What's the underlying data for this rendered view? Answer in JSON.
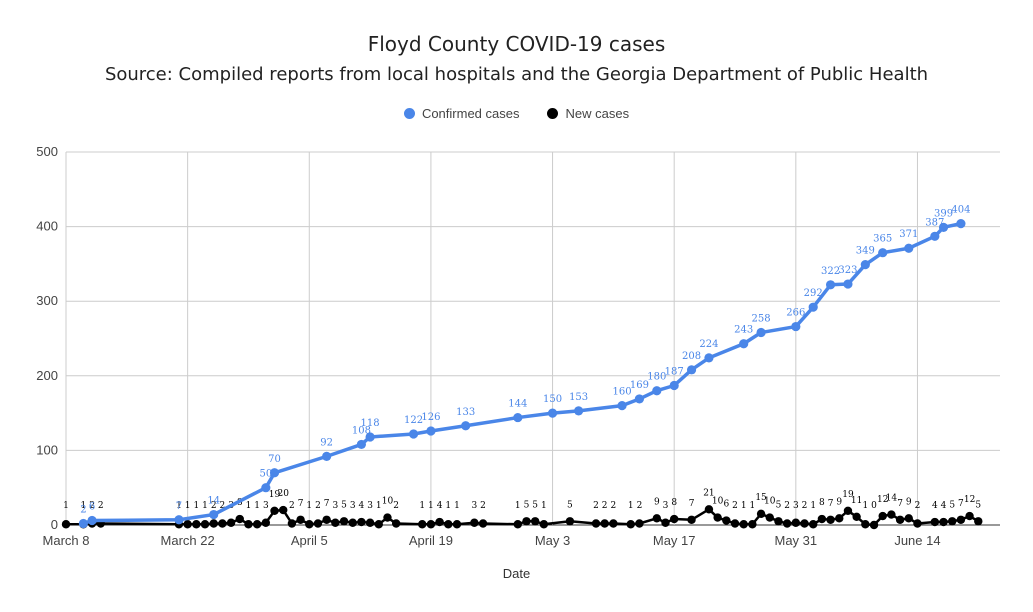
{
  "chart_data": {
    "type": "line",
    "title": "Floyd County COVID-19 cases",
    "subtitle": "Source: Compiled reports from local hospitals and the Georgia Department of Public Health",
    "xlabel": "Date",
    "ylabel": "",
    "ylim": [
      0,
      500
    ],
    "yticks": [
      0,
      100,
      200,
      300,
      400,
      500
    ],
    "xticks": [
      "March 8",
      "March 22",
      "April 5",
      "April 19",
      "May 3",
      "May 17",
      "May 31",
      "June 14"
    ],
    "grid": true,
    "legend_position": "top",
    "series": [
      {
        "name": "Confirmed cases",
        "color": "#4a86e8",
        "points": [
          [
            "03-10",
            2
          ],
          [
            "03-11",
            6
          ],
          [
            "03-21",
            7
          ],
          [
            "03-25",
            14
          ],
          [
            "03-31",
            50
          ],
          [
            "04-01",
            70
          ],
          [
            "04-07",
            92
          ],
          [
            "04-11",
            108
          ],
          [
            "04-12",
            118
          ],
          [
            "04-17",
            122
          ],
          [
            "04-19",
            126
          ],
          [
            "04-23",
            133
          ],
          [
            "04-29",
            144
          ],
          [
            "05-03",
            150
          ],
          [
            "05-06",
            153
          ],
          [
            "05-11",
            160
          ],
          [
            "05-13",
            169
          ],
          [
            "05-15",
            180
          ],
          [
            "05-17",
            187
          ],
          [
            "05-19",
            208
          ],
          [
            "05-21",
            224
          ],
          [
            "05-25",
            243
          ],
          [
            "05-27",
            258
          ],
          [
            "05-31",
            266
          ],
          [
            "06-02",
            292
          ],
          [
            "06-04",
            322
          ],
          [
            "06-06",
            323
          ],
          [
            "06-08",
            349
          ],
          [
            "06-10",
            365
          ],
          [
            "06-13",
            371
          ],
          [
            "06-16",
            387
          ],
          [
            "06-17",
            399
          ],
          [
            "06-19",
            404
          ]
        ]
      },
      {
        "name": "New cases",
        "color": "#000000",
        "points": [
          [
            "03-08",
            1
          ],
          [
            "03-10",
            1
          ],
          [
            "03-11",
            2
          ],
          [
            "03-12",
            2
          ],
          [
            "03-21",
            1
          ],
          [
            "03-22",
            1
          ],
          [
            "03-23",
            1
          ],
          [
            "03-24",
            1
          ],
          [
            "03-25",
            2
          ],
          [
            "03-26",
            2
          ],
          [
            "03-27",
            3
          ],
          [
            "03-28",
            8
          ],
          [
            "03-29",
            1
          ],
          [
            "03-30",
            1
          ],
          [
            "03-31",
            3
          ],
          [
            "04-01",
            19
          ],
          [
            "04-02",
            20
          ],
          [
            "04-03",
            2
          ],
          [
            "04-04",
            7
          ],
          [
            "04-05",
            1
          ],
          [
            "04-06",
            2
          ],
          [
            "04-07",
            7
          ],
          [
            "04-08",
            3
          ],
          [
            "04-09",
            5
          ],
          [
            "04-10",
            3
          ],
          [
            "04-11",
            4
          ],
          [
            "04-12",
            3
          ],
          [
            "04-13",
            1
          ],
          [
            "04-14",
            10
          ],
          [
            "04-15",
            2
          ],
          [
            "04-18",
            1
          ],
          [
            "04-19",
            1
          ],
          [
            "04-20",
            4
          ],
          [
            "04-21",
            1
          ],
          [
            "04-22",
            1
          ],
          [
            "04-24",
            3
          ],
          [
            "04-25",
            2
          ],
          [
            "04-29",
            1
          ],
          [
            "04-30",
            5
          ],
          [
            "05-01",
            5
          ],
          [
            "05-02",
            1
          ],
          [
            "05-05",
            5
          ],
          [
            "05-08",
            2
          ],
          [
            "05-09",
            2
          ],
          [
            "05-10",
            2
          ],
          [
            "05-12",
            1
          ],
          [
            "05-13",
            2
          ],
          [
            "05-15",
            9
          ],
          [
            "05-16",
            3
          ],
          [
            "05-17",
            8
          ],
          [
            "05-19",
            7
          ],
          [
            "05-21",
            21
          ],
          [
            "05-22",
            10
          ],
          [
            "05-23",
            6
          ],
          [
            "05-24",
            2
          ],
          [
            "05-25",
            1
          ],
          [
            "05-26",
            1
          ],
          [
            "05-27",
            15
          ],
          [
            "05-28",
            10
          ],
          [
            "05-29",
            5
          ],
          [
            "05-30",
            2
          ],
          [
            "05-31",
            3
          ],
          [
            "06-01",
            2
          ],
          [
            "06-02",
            1
          ],
          [
            "06-03",
            8
          ],
          [
            "06-04",
            7
          ],
          [
            "06-05",
            9
          ],
          [
            "06-06",
            19
          ],
          [
            "06-07",
            11
          ],
          [
            "06-08",
            1
          ],
          [
            "06-09",
            0
          ],
          [
            "06-10",
            12
          ],
          [
            "06-11",
            14
          ],
          [
            "06-12",
            7
          ],
          [
            "06-13",
            9
          ],
          [
            "06-14",
            2
          ],
          [
            "06-16",
            4
          ],
          [
            "06-17",
            4
          ],
          [
            "06-18",
            5
          ],
          [
            "06-19",
            7
          ],
          [
            "06-20",
            12
          ],
          [
            "06-21",
            5
          ]
        ]
      }
    ]
  }
}
